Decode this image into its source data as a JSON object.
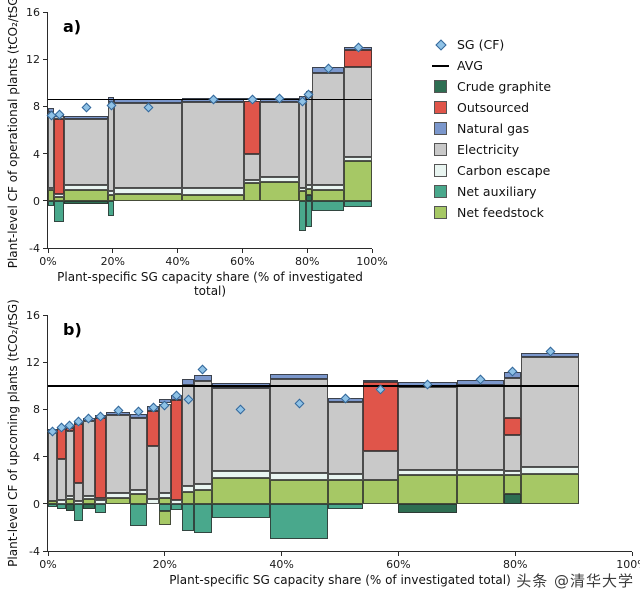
{
  "watermark": {
    "text": "头条 @清华大学"
  },
  "colors": {
    "crude_graphite": "#2e6e52",
    "outsourced": "#e0554a",
    "natural_gas": "#7b97cc",
    "electricity": "#c9c9c9",
    "carbon_escape": "#e9f5f1",
    "net_auxiliary": "#49a88c",
    "net_feedstock": "#a6c865",
    "marker_fill": "#8fc2e6",
    "marker_edge": "#336699",
    "avg": "#000000"
  },
  "legend": {
    "items": [
      {
        "label": "SG (CF)",
        "marker": "diamond"
      },
      {
        "label": "AVG",
        "marker": "line"
      },
      {
        "label": "Crude graphite",
        "marker": "swatch",
        "key": "crude_graphite"
      },
      {
        "label": "Outsourced",
        "marker": "swatch",
        "key": "outsourced"
      },
      {
        "label": "Natural gas",
        "marker": "swatch",
        "key": "natural_gas"
      },
      {
        "label": "Electricity",
        "marker": "swatch",
        "key": "electricity"
      },
      {
        "label": "Carbon escape",
        "marker": "swatch",
        "key": "carbon_escape"
      },
      {
        "label": "Net auxiliary",
        "marker": "swatch",
        "key": "net_auxiliary"
      },
      {
        "label": "Net feedstock",
        "marker": "swatch",
        "key": "net_feedstock"
      }
    ]
  },
  "chart_data": [
    {
      "id": "a",
      "type": "bar",
      "subtype": "variable-width-stacked",
      "panel_label": "a)",
      "ylabel": "Plant-level CF of operational plants (tCO₂/tSG)",
      "xlabel": "Plant-specific SG capacity share (% of investigated total)",
      "ylim": [
        -4,
        16
      ],
      "yticks": [
        -4,
        0,
        4,
        8,
        12,
        16
      ],
      "xticks": [
        "0%",
        "20%",
        "40%",
        "60%",
        "80%",
        "100%"
      ],
      "avg": 8.6,
      "avg_span": [
        0,
        100
      ],
      "bars": [
        {
          "w": 2,
          "pos": [
            [
              "net_feedstock",
              0.9
            ],
            [
              "carbon_escape",
              0.2
            ],
            [
              "electricity",
              6.4
            ],
            [
              "natural_gas",
              0.4
            ]
          ],
          "neg": [
            [
              "net_auxiliary",
              0.4
            ]
          ],
          "sg": 7.2
        },
        {
          "w": 3,
          "pos": [
            [
              "net_feedstock",
              0.3
            ],
            [
              "carbon_escape",
              0.3
            ],
            [
              "outsourced",
              6.3
            ],
            [
              "electricity",
              0.3
            ],
            [
              "natural_gas",
              0.1
            ]
          ],
          "neg": [
            [
              "net_auxiliary",
              1.8
            ]
          ],
          "sg": 7.3
        },
        {
          "w": 13.5,
          "pos": [
            [
              "net_feedstock",
              0.9
            ],
            [
              "carbon_escape",
              0.4
            ],
            [
              "electricity",
              5.6
            ],
            [
              "natural_gas",
              0.3
            ]
          ],
          "neg": [
            [
              "crude_graphite",
              0.3
            ]
          ],
          "sg": 7.9
        },
        {
          "w": 2,
          "pos": [
            [
              "net_feedstock",
              0.5
            ],
            [
              "carbon_escape",
              0.3
            ],
            [
              "electricity",
              7.6
            ],
            [
              "natural_gas",
              0.4
            ]
          ],
          "neg": [
            [
              "net_auxiliary",
              1.3
            ]
          ],
          "sg": 8.1
        },
        {
          "w": 21,
          "pos": [
            [
              "net_feedstock",
              0.6
            ],
            [
              "carbon_escape",
              0.5
            ],
            [
              "electricity",
              7.2
            ],
            [
              "natural_gas",
              0.3
            ]
          ],
          "neg": [],
          "sg": 7.9
        },
        {
          "w": 19,
          "pos": [
            [
              "net_feedstock",
              0.5
            ],
            [
              "carbon_escape",
              0.6
            ],
            [
              "electricity",
              7.3
            ],
            [
              "natural_gas",
              0.3
            ]
          ],
          "neg": [],
          "sg": 8.6
        },
        {
          "w": 5,
          "pos": [
            [
              "net_feedstock",
              1.5
            ],
            [
              "carbon_escape",
              0.3
            ],
            [
              "electricity",
              2.2
            ],
            [
              "outsourced",
              4.5
            ],
            [
              "natural_gas",
              0.2
            ]
          ],
          "neg": [],
          "sg": 8.6
        },
        {
          "w": 12,
          "pos": [
            [
              "net_feedstock",
              1.6
            ],
            [
              "carbon_escape",
              0.4
            ],
            [
              "electricity",
              6.4
            ],
            [
              "natural_gas",
              0.3
            ]
          ],
          "neg": [],
          "sg": 8.7
        },
        {
          "w": 2,
          "pos": [
            [
              "net_feedstock",
              0.8
            ],
            [
              "carbon_escape",
              0.3
            ],
            [
              "electricity",
              7.4
            ],
            [
              "natural_gas",
              0.4
            ]
          ],
          "neg": [
            [
              "net_auxiliary",
              2.6
            ]
          ],
          "sg": 8.4
        },
        {
          "w": 2,
          "pos": [
            [
              "crude_graphite",
              0.5
            ],
            [
              "net_feedstock",
              0.5
            ],
            [
              "carbon_escape",
              0.3
            ],
            [
              "electricity",
              7.5
            ],
            [
              "natural_gas",
              0.5
            ]
          ],
          "neg": [
            [
              "net_auxiliary",
              2.2
            ]
          ],
          "sg": 9.0
        },
        {
          "w": 10,
          "pos": [
            [
              "net_feedstock",
              0.9
            ],
            [
              "carbon_escape",
              0.4
            ],
            [
              "electricity",
              9.5
            ],
            [
              "natural_gas",
              0.5
            ]
          ],
          "neg": [
            [
              "net_auxiliary",
              0.9
            ]
          ],
          "sg": 11.2
        },
        {
          "w": 8.5,
          "pos": [
            [
              "net_feedstock",
              3.4
            ],
            [
              "carbon_escape",
              0.3
            ],
            [
              "electricity",
              7.6
            ],
            [
              "outsourced",
              1.5
            ],
            [
              "natural_gas",
              0.2
            ]
          ],
          "neg": [
            [
              "net_auxiliary",
              0.5
            ]
          ],
          "sg": 13.0
        }
      ]
    },
    {
      "id": "b",
      "type": "bar",
      "subtype": "variable-width-stacked",
      "panel_label": "b)",
      "ylabel": "Plant-level CF of upcoming plants (tCO₂/tSG)",
      "xlabel": "Plant-specific SG capacity share (% of investigated total)",
      "ylim": [
        -4,
        16
      ],
      "yticks": [
        -4,
        0,
        4,
        8,
        12,
        16
      ],
      "xticks": [
        "0%",
        "20%",
        "40%",
        "60%",
        "80%",
        "100%"
      ],
      "avg": 10.0,
      "avg_span": [
        0,
        91
      ],
      "bars": [
        {
          "w": 1.5,
          "pos": [
            [
              "net_feedstock",
              0.2
            ],
            [
              "electricity",
              5.8
            ],
            [
              "natural_gas",
              0.3
            ]
          ],
          "neg": [
            [
              "net_auxiliary",
              0.3
            ]
          ],
          "sg": 6.1
        },
        {
          "w": 1.5,
          "pos": [
            [
              "carbon_escape",
              0.3
            ],
            [
              "electricity",
              3.5
            ],
            [
              "outsourced",
              2.5
            ],
            [
              "natural_gas",
              0.2
            ]
          ],
          "neg": [
            [
              "net_auxiliary",
              0.4
            ]
          ],
          "sg": 6.5
        },
        {
          "w": 1.5,
          "pos": [
            [
              "net_feedstock",
              0.4
            ],
            [
              "carbon_escape",
              0.3
            ],
            [
              "electricity",
              5.5
            ],
            [
              "outsourced",
              0.2
            ],
            [
              "natural_gas",
              0.2
            ]
          ],
          "neg": [
            [
              "crude_graphite",
              0.6
            ]
          ],
          "sg": 6.6
        },
        {
          "w": 1.5,
          "pos": [
            [
              "carbon_escape",
              0.2
            ],
            [
              "electricity",
              1.6
            ],
            [
              "outsourced",
              5.0
            ],
            [
              "natural_gas",
              0.2
            ]
          ],
          "neg": [
            [
              "net_auxiliary",
              1.5
            ]
          ],
          "sg": 7.0
        },
        {
          "w": 2,
          "pos": [
            [
              "net_feedstock",
              0.4
            ],
            [
              "carbon_escape",
              0.3
            ],
            [
              "electricity",
              6.3
            ],
            [
              "natural_gas",
              0.3
            ]
          ],
          "neg": [
            [
              "crude_graphite",
              0.4
            ]
          ],
          "sg": 7.2
        },
        {
          "w": 2,
          "pos": [
            [
              "carbon_escape",
              0.3
            ],
            [
              "electricity",
              0.2
            ],
            [
              "outsourced",
              6.8
            ],
            [
              "natural_gas",
              0.2
            ]
          ],
          "neg": [
            [
              "net_auxiliary",
              0.8
            ]
          ],
          "sg": 7.4
        },
        {
          "w": 4,
          "pos": [
            [
              "net_feedstock",
              0.5
            ],
            [
              "carbon_escape",
              0.4
            ],
            [
              "electricity",
              6.6
            ],
            [
              "natural_gas",
              0.3
            ]
          ],
          "neg": [],
          "sg": 7.9
        },
        {
          "w": 3,
          "pos": [
            [
              "net_feedstock",
              0.8
            ],
            [
              "carbon_escape",
              0.4
            ],
            [
              "electricity",
              6.1
            ],
            [
              "natural_gas",
              0.3
            ]
          ],
          "neg": [
            [
              "net_auxiliary",
              1.9
            ]
          ],
          "sg": 7.8
        },
        {
          "w": 2,
          "pos": [
            [
              "carbon_escape",
              0.4
            ],
            [
              "electricity",
              4.5
            ],
            [
              "outsourced",
              3.0
            ],
            [
              "natural_gas",
              0.4
            ]
          ],
          "neg": [],
          "sg": 8.2
        },
        {
          "w": 2,
          "pos": [
            [
              "net_feedstock",
              0.5
            ],
            [
              "carbon_escape",
              0.4
            ],
            [
              "electricity",
              7.6
            ],
            [
              "natural_gas",
              0.4
            ]
          ],
          "neg": [
            [
              "net_auxiliary",
              0.6
            ],
            [
              "net_feedstock",
              1.2
            ]
          ],
          "sg": 8.3
        },
        {
          "w": 2,
          "pos": [
            [
              "carbon_escape",
              0.3
            ],
            [
              "outsourced",
              8.5
            ],
            [
              "natural_gas",
              0.4
            ]
          ],
          "neg": [
            [
              "net_auxiliary",
              0.5
            ]
          ],
          "sg": 9.2
        },
        {
          "w": 2,
          "pos": [
            [
              "net_feedstock",
              1.0
            ],
            [
              "carbon_escape",
              0.5
            ],
            [
              "electricity",
              8.6
            ],
            [
              "natural_gas",
              0.5
            ]
          ],
          "neg": [
            [
              "net_auxiliary",
              2.3
            ]
          ],
          "sg": 8.8
        },
        {
          "w": 3,
          "pos": [
            [
              "net_feedstock",
              1.2
            ],
            [
              "carbon_escape",
              0.5
            ],
            [
              "electricity",
              8.7
            ],
            [
              "natural_gas",
              0.5
            ]
          ],
          "neg": [
            [
              "net_auxiliary",
              2.5
            ]
          ],
          "sg": 11.4
        },
        {
          "w": 10,
          "pos": [
            [
              "net_feedstock",
              2.2
            ],
            [
              "carbon_escape",
              0.6
            ],
            [
              "electricity",
              7.0
            ],
            [
              "natural_gas",
              0.4
            ]
          ],
          "neg": [
            [
              "net_auxiliary",
              1.2
            ]
          ],
          "sg": 8.0
        },
        {
          "w": 10,
          "pos": [
            [
              "net_feedstock",
              2.0
            ],
            [
              "carbon_escape",
              0.6
            ],
            [
              "electricity",
              8.0
            ],
            [
              "natural_gas",
              0.4
            ]
          ],
          "neg": [
            [
              "net_auxiliary",
              3.0
            ]
          ],
          "sg": 8.5
        },
        {
          "w": 6,
          "pos": [
            [
              "net_feedstock",
              2.0
            ],
            [
              "carbon_escape",
              0.5
            ],
            [
              "electricity",
              6.1
            ],
            [
              "natural_gas",
              0.4
            ]
          ],
          "neg": [
            [
              "net_auxiliary",
              0.4
            ]
          ],
          "sg": 8.9
        },
        {
          "w": 6,
          "pos": [
            [
              "net_feedstock",
              2.0
            ],
            [
              "electricity",
              2.5
            ],
            [
              "outsourced",
              5.8
            ],
            [
              "natural_gas",
              0.2
            ]
          ],
          "neg": [],
          "sg": 9.7
        },
        {
          "w": 10,
          "pos": [
            [
              "net_feedstock",
              2.4
            ],
            [
              "carbon_escape",
              0.5
            ],
            [
              "electricity",
              7.0
            ],
            [
              "natural_gas",
              0.4
            ]
          ],
          "neg": [
            [
              "crude_graphite",
              0.8
            ]
          ],
          "sg": 10.1
        },
        {
          "w": 8,
          "pos": [
            [
              "net_feedstock",
              2.4
            ],
            [
              "carbon_escape",
              0.5
            ],
            [
              "electricity",
              7.2
            ],
            [
              "natural_gas",
              0.4
            ]
          ],
          "neg": [],
          "sg": 10.5
        },
        {
          "w": 3,
          "pos": [
            [
              "crude_graphite",
              0.8
            ],
            [
              "net_feedstock",
              1.6
            ],
            [
              "carbon_escape",
              0.4
            ],
            [
              "electricity",
              3.0
            ],
            [
              "outsourced",
              1.5
            ],
            [
              "electricity",
              3.4
            ],
            [
              "natural_gas",
              0.5
            ]
          ],
          "neg": [],
          "sg": 11.2
        },
        {
          "w": 10,
          "pos": [
            [
              "net_feedstock",
              2.5
            ],
            [
              "carbon_escape",
              0.6
            ],
            [
              "electricity",
              9.3
            ],
            [
              "natural_gas",
              0.4
            ]
          ],
          "neg": [],
          "sg": 12.9
        }
      ]
    }
  ]
}
